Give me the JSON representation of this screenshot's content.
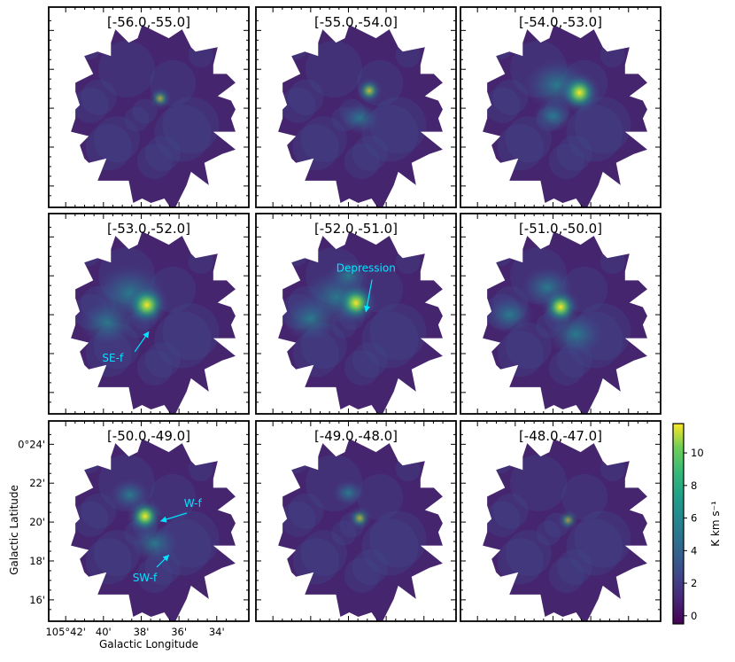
{
  "chart_data": {
    "type": "heatmap",
    "description_units": "integrated intensity maps over velocity ranges (km/s)",
    "panels": [
      {
        "title": "[-56.0,-55.0]",
        "peaks": [
          {
            "l": 37.0,
            "b": 20.5,
            "value": 3.0
          }
        ]
      },
      {
        "title": "[-55.0,-54.0]",
        "peaks": [
          {
            "l": 36.9,
            "b": 20.9,
            "value": 4.5
          }
        ]
      },
      {
        "title": "[-54.0,-53.0]",
        "peaks": [
          {
            "l": 36.6,
            "b": 20.8,
            "value": 11.0
          }
        ]
      },
      {
        "title": "[-53.0,-52.0]",
        "peaks": [
          {
            "l": 37.7,
            "b": 20.5,
            "value": 11.5
          }
        ]
      },
      {
        "title": "[-52.0,-51.0]",
        "peaks": [
          {
            "l": 37.6,
            "b": 20.6,
            "value": 11.0
          }
        ]
      },
      {
        "title": "[-51.0,-50.0]",
        "peaks": [
          {
            "l": 37.6,
            "b": 20.4,
            "value": 9.5
          }
        ]
      },
      {
        "title": "[-50.0,-49.0]",
        "peaks": [
          {
            "l": 37.8,
            "b": 20.3,
            "value": 8.5
          }
        ]
      },
      {
        "title": "[-49.0,-48.0]",
        "peaks": [
          {
            "l": 37.4,
            "b": 20.2,
            "value": 3.5
          }
        ]
      },
      {
        "title": "[-48.0,-47.0]",
        "peaks": [
          {
            "l": 37.2,
            "b": 20.1,
            "value": 2.5
          }
        ]
      }
    ],
    "annotations": [
      {
        "panel": 3,
        "text": "SE-f"
      },
      {
        "panel": 4,
        "text": "Depression"
      },
      {
        "panel": 6,
        "text": "W-f"
      },
      {
        "panel": 6,
        "text": "SW-f"
      }
    ],
    "xlabel": "Galactic Longitude",
    "ylabel": "Galactic Latitude",
    "x_ticks": [
      "105°42'",
      "40'",
      "38'",
      "36'",
      "34'"
    ],
    "y_ticks": [
      "0°24'",
      "22'",
      "20'",
      "18'",
      "16'"
    ],
    "colorbar": {
      "label": "K km s⁻¹",
      "ticks": [
        "0",
        "2",
        "4",
        "6",
        "8",
        "10"
      ],
      "range": [
        -0.5,
        11.8
      ],
      "colormap": "viridis"
    },
    "colors": {
      "low": "#440154",
      "mid": "#21918c",
      "high": "#fde725",
      "annotation": "#00e5ff"
    }
  }
}
